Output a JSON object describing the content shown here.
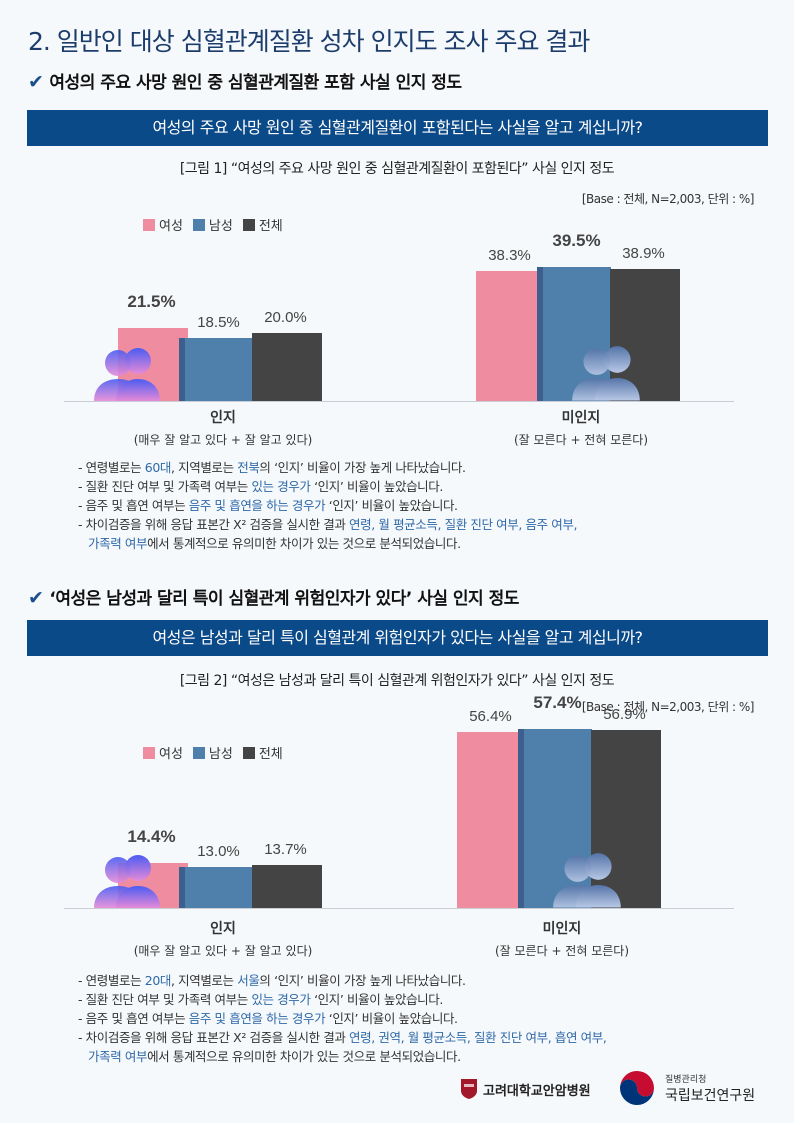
{
  "title": "2. 일반인 대상 심혈관계질환 성차 인지도 조사 주요 결과",
  "colors": {
    "female": "#f08ca0",
    "male": "#4f80ab",
    "total": "#444444",
    "banner": "#0b4a88",
    "highlight": "#2f69a8"
  },
  "sections": [
    {
      "heading": "여성의 주요 사망 원인 중 심혈관계질환 포함 사실 인지 정도",
      "question": "여성의 주요 사망 원인 중 심혈관계질환이 포함된다는 사실을 알고 계십니까?",
      "notes": [
        [
          {
            "t": "- 연령별로는 "
          },
          {
            "t": "60대",
            "h": true
          },
          {
            "t": ", 지역별로는 "
          },
          {
            "t": "전북",
            "h": true
          },
          {
            "t": "의 ‘인지’ 비율이 가장 높게 나타났습니다."
          }
        ],
        [
          {
            "t": "- 질환 진단 여부 및 가족력 여부는 "
          },
          {
            "t": "있는 경우가",
            "h": true
          },
          {
            "t": " ‘인지’ 비율이 높았습니다."
          }
        ],
        [
          {
            "t": "- 음주 및 흡연 여부는 "
          },
          {
            "t": "음주 및 흡연을 하는 경우가",
            "h": true
          },
          {
            "t": " ‘인지’ 비율이 높았습니다."
          }
        ],
        [
          {
            "t": "- 차이검증을 위해 응답 표본간 X² 검증을 실시한 결과 "
          },
          {
            "t": "연령, 월 평균소득,  질환 진단 여부, 음주 여부,",
            "h": true
          }
        ],
        [
          {
            "t": "가족력 여부",
            "h": true,
            "ind": true
          },
          {
            "t": "에서 통계적으로 유의미한 차이가 있는 것으로 분석되었습니다."
          }
        ]
      ]
    },
    {
      "heading": "‘여성은 남성과 달리 특이 심혈관계 위험인자가 있다’ 사실 인지 정도",
      "question": "여성은 남성과 달리 특이 심혈관계 위험인자가 있다는 사실을 알고 계십니까?",
      "notes": [
        [
          {
            "t": "- 연령별로는 "
          },
          {
            "t": "20대",
            "h": true
          },
          {
            "t": ", 지역별로는 "
          },
          {
            "t": "서울",
            "h": true
          },
          {
            "t": "의 ‘인지’ 비율이 가장 높게 나타났습니다."
          }
        ],
        [
          {
            "t": "- 질환 진단 여부 및 가족력 여부는 "
          },
          {
            "t": "있는 경우가",
            "h": true
          },
          {
            "t": " ‘인지’ 비율이 높았습니다."
          }
        ],
        [
          {
            "t": "- 음주 및 흡연 여부는 "
          },
          {
            "t": "음주 및 흡연을 하는 경우가",
            "h": true
          },
          {
            "t": " ‘인지’ 비율이 높았습니다."
          }
        ],
        [
          {
            "t": "- 차이검증을 위해 응답 표본간 X² 검증을 실시한 결과 "
          },
          {
            "t": "연령, 권역, 월 평균소득,  질환 진단 여부, 흡연 여부,",
            "h": true
          }
        ],
        [
          {
            "t": "가족력 여부",
            "h": true,
            "ind": true
          },
          {
            "t": "에서 통계적으로 유의미한 차이가 있는 것으로 분석되었습니다."
          }
        ]
      ]
    }
  ],
  "chart_data": [
    {
      "type": "bar",
      "title": "[그림 1] “여성의 주요 사망 원인 중 심혈관계질환이 포함된다” 사실 인지 정도",
      "base": "[Base : 전체, N=2,003, 단위 : %]",
      "categories": [
        "인지",
        "미인지"
      ],
      "category_sub": [
        "(매우 잘 알고 있다 + 잘 알고 있다)",
        "(잘 모른다 + 전혀 모른다)"
      ],
      "series": [
        {
          "name": "여성",
          "values": [
            21.5,
            38.3
          ]
        },
        {
          "name": "남성",
          "values": [
            18.5,
            39.5
          ]
        },
        {
          "name": "전체",
          "values": [
            20.0,
            38.9
          ]
        }
      ],
      "labels": [
        [
          "21.5%",
          "18.5%",
          "20.0%"
        ],
        [
          "38.3%",
          "39.5%",
          "38.9%"
        ]
      ],
      "bold": [
        [
          0
        ],
        [
          1
        ]
      ],
      "legend": "top-left",
      "grid": false
    },
    {
      "type": "bar",
      "title": "[그림 2] “여성은 남성과 달리 특이 심혈관계 위험인자가 있다” 사실 인지 정도",
      "base": "[Base : 전체, N=2,003, 단위 : %]",
      "categories": [
        "인지",
        "미인지"
      ],
      "category_sub": [
        "(매우 잘 알고 있다 + 잘 알고 있다)",
        "(잘 모른다 + 전혀 모른다)"
      ],
      "series": [
        {
          "name": "여성",
          "values": [
            14.4,
            56.4
          ]
        },
        {
          "name": "남성",
          "values": [
            13.0,
            57.4
          ]
        },
        {
          "name": "전체",
          "values": [
            13.7,
            56.9
          ]
        }
      ],
      "labels": [
        [
          "14.4%",
          "13.0%",
          "13.7%"
        ],
        [
          "56.4%",
          "57.4%",
          "56.9%"
        ]
      ],
      "bold": [
        [
          0
        ],
        [
          1
        ]
      ],
      "legend": "top-left",
      "grid": false
    }
  ],
  "logos": {
    "kuah": "고려대학교안암병원",
    "kdca_small": "질병관리청",
    "kdca": "국립보건연구원"
  }
}
